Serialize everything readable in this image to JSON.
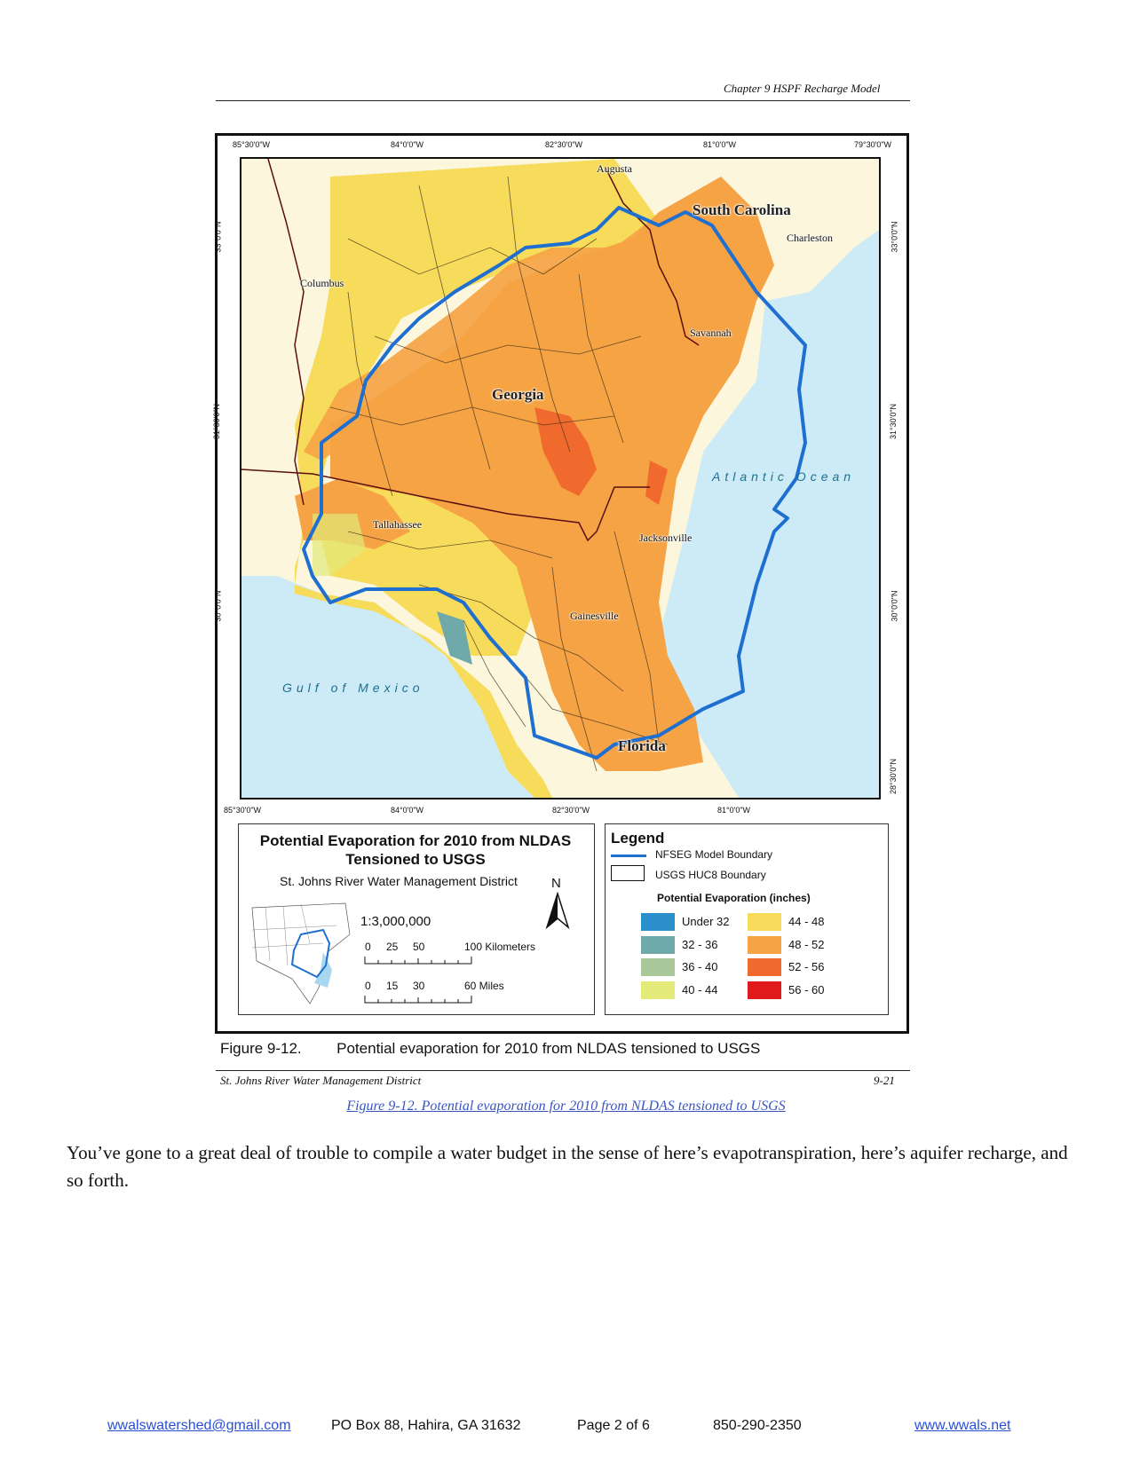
{
  "header": {
    "chapter": "Chapter 9 HSPF Recharge Model"
  },
  "map": {
    "top_coords": [
      "85°30'0\"W",
      "84°0'0\"W",
      "82°30'0\"W",
      "81°0'0\"W",
      "79°30'0\"W"
    ],
    "bottom_coords": [
      "85°30'0\"W",
      "84°0'0\"W",
      "82°30'0\"W",
      "81°0'0\"W"
    ],
    "left_coords": [
      "33°0'0\"N",
      "31°30'0\"N",
      "30°0'0\"N"
    ],
    "right_coords": [
      "33°0'0\"N",
      "31°30'0\"N",
      "30°0'0\"N",
      "28°30'0\"N"
    ],
    "places": {
      "augusta": "Augusta",
      "charleston": "Charleston",
      "columbus": "Columbus",
      "savannah": "Savannah",
      "tallahassee": "Tallahassee",
      "jacksonville": "Jacksonville",
      "gainesville": "Gainesville"
    },
    "states": {
      "south_carolina": "South Carolina",
      "georgia": "Georgia",
      "florida": "Florida"
    },
    "water_bodies": {
      "atlantic": "Atlantic Ocean",
      "gulf": "Gulf of Mexico"
    }
  },
  "title_block": {
    "title_line1": "Potential Evaporation for 2010 from NLDAS",
    "title_line2": "Tensioned to USGS",
    "agency": "St. Johns River Water Management District",
    "north": "N",
    "scale": "1:3,000,000",
    "km_ticks": [
      "0",
      "25",
      "50",
      "100 Kilometers"
    ],
    "mi_ticks": [
      "0",
      "15",
      "30",
      "60 Miles"
    ]
  },
  "legend": {
    "title": "Legend",
    "boundary_nfseg": "NFSEG Model Boundary",
    "boundary_huc8": "USGS HUC8 Boundary",
    "pe_title": "Potential Evaporation (inches)",
    "classes": [
      {
        "label": "Under 32",
        "color": "#2a8fcb"
      },
      {
        "label": "32 - 36",
        "color": "#6fa9a9"
      },
      {
        "label": "36 - 40",
        "color": "#a9c89a"
      },
      {
        "label": "40 - 44",
        "color": "#e3ea7a"
      },
      {
        "label": "44 - 48",
        "color": "#f7db5b"
      },
      {
        "label": "48 - 52",
        "color": "#f5a344"
      },
      {
        "label": "52 - 56",
        "color": "#ef6a2c"
      },
      {
        "label": "56 - 60",
        "color": "#e01a1a"
      }
    ]
  },
  "caption": {
    "number": "Figure 9-12.",
    "text": "Potential evaporation for 2010 from NLDAS tensioned to USGS"
  },
  "figure_footer": {
    "left": "St. Johns River Water Management District",
    "right": "9-21"
  },
  "figure_link": "Figure 9-12. Potential evaporation for 2010 from NLDAS tensioned to USGS",
  "body": "You’ve gone to a great deal of trouble to compile a water budget in the sense of here’s evapotranspiration, here’s aquifer recharge, and so forth.",
  "footer": {
    "email": "wwalswatershed@gmail.com",
    "address": "PO Box 88, Hahira, GA 31632",
    "page": "Page 2 of 6",
    "phone": "850-290-2350",
    "website": "www.wwals.net"
  },
  "colors": {
    "ocean": "#cdeaf7",
    "land_outside": "#fbf6dc",
    "boundary_blue": "#1f6fd0"
  }
}
